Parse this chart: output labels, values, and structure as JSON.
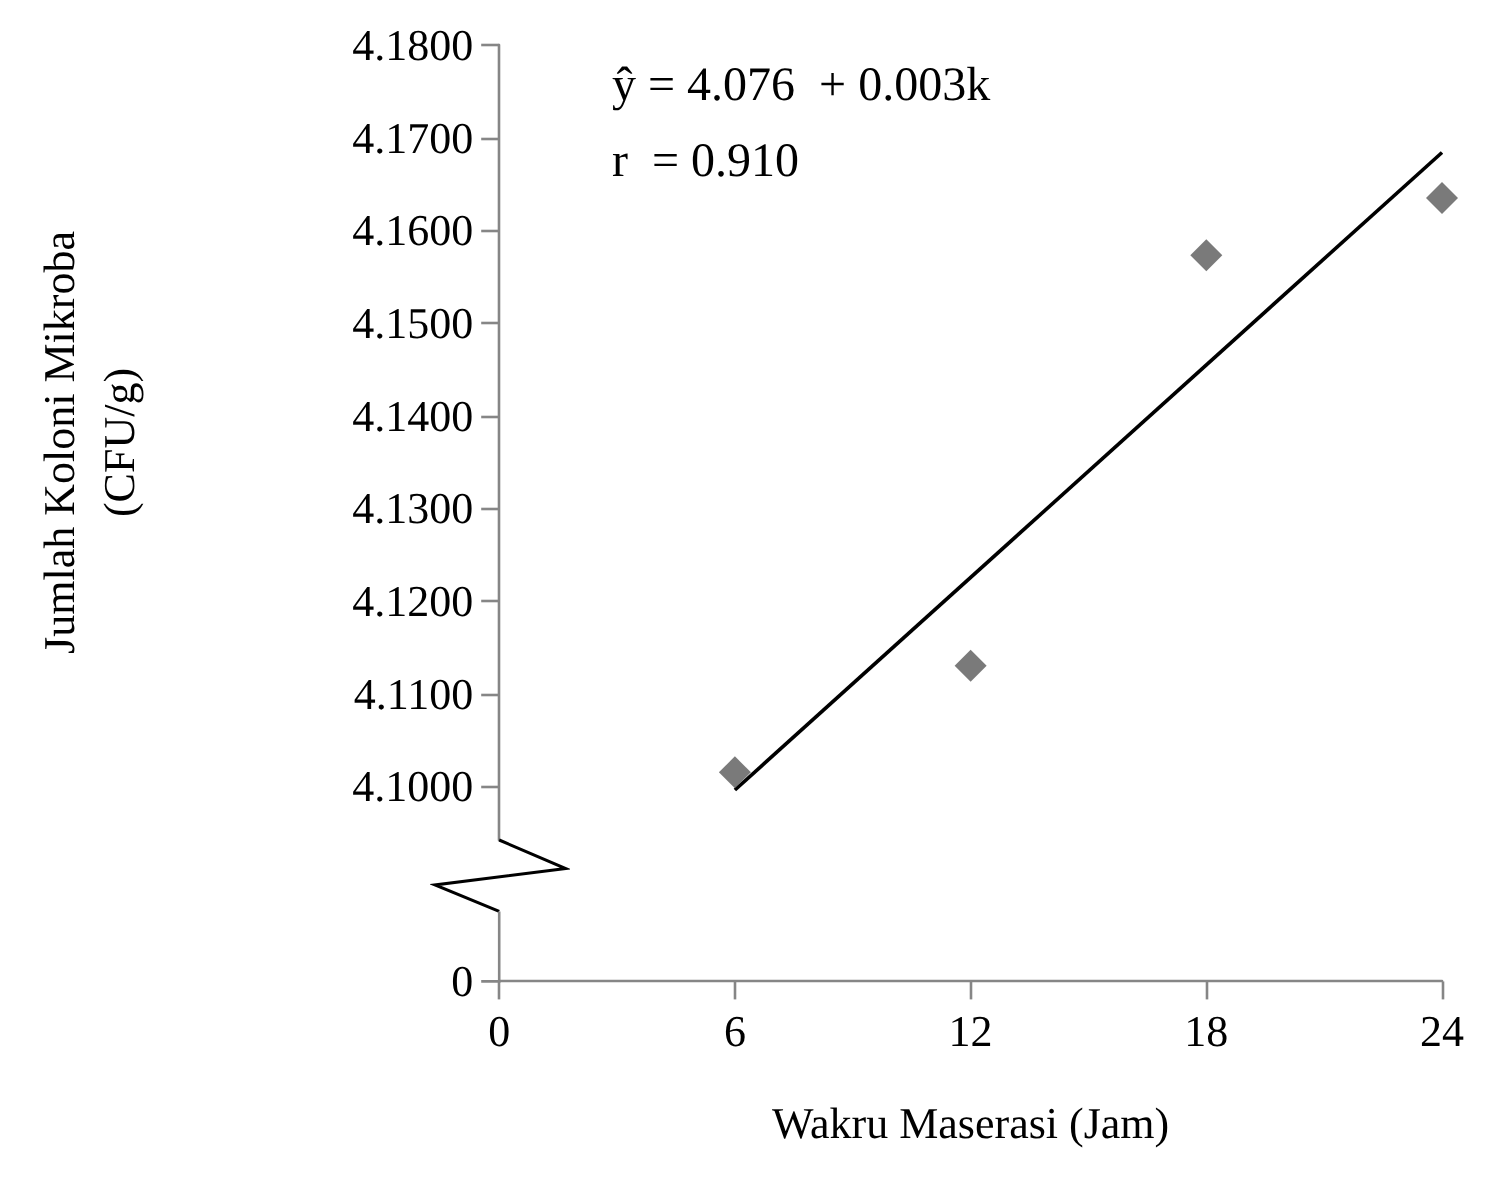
{
  "chart_data": {
    "type": "scatter",
    "xlabel": "Wakru Maserasi (Jam)",
    "ylabel": "Jumlah Koloni Mikroba\n(CFU/g)",
    "annotations": [
      "ŷ = 4.076  + 0.003k",
      "r  = 0.910",
      "0"
    ],
    "series": [
      {
        "type": "scatter",
        "x": [
          6,
          12,
          18,
          24
        ],
        "values": [
          4.1015,
          4.113,
          4.1573,
          4.1635
        ],
        "color": "#595959",
        "marker": "diamond"
      },
      {
        "type": "line",
        "x": [
          6,
          24
        ],
        "values": [
          4.0996,
          4.1684
        ],
        "color": "#000000",
        "marker": "none",
        "line_style": "solid"
      }
    ],
    "xlim": [
      0,
      24
    ],
    "xticks": [
      0,
      6,
      12,
      18,
      24
    ],
    "ylim": [
      4.0942,
      4.18
    ],
    "yticks": [
      {
        "value": 4.1,
        "label": "4.1000"
      },
      {
        "value": 4.11,
        "label": "4.1100"
      },
      {
        "value": 4.12,
        "label": "4.1200"
      },
      {
        "value": 4.13,
        "label": "4.1300"
      },
      {
        "value": 4.14,
        "label": "4.1400"
      },
      {
        "value": 4.15,
        "label": "4.1500"
      },
      {
        "value": 4.16,
        "label": "4.1600"
      },
      {
        "value": 4.17,
        "label": "4.1700"
      },
      {
        "value": 4.18,
        "label": "4.1800"
      }
    ],
    "grid": false
  }
}
